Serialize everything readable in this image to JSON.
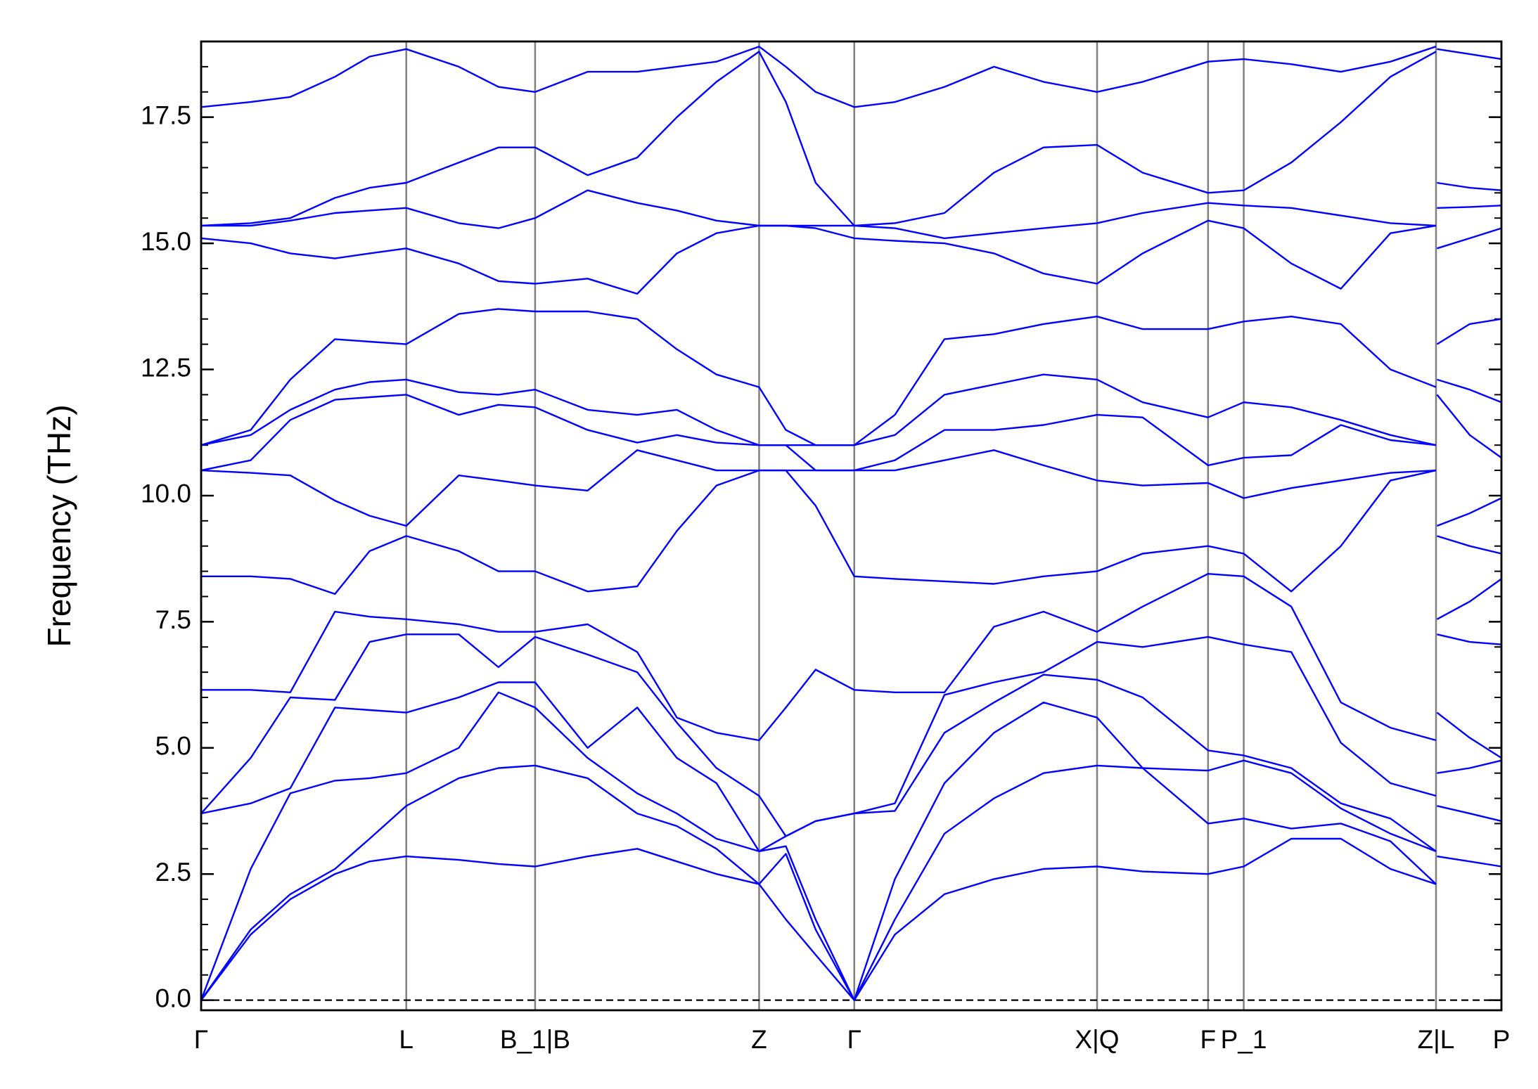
{
  "chart_data": {
    "type": "line",
    "y_label": "Frequency (THz)",
    "color": "#0000ff",
    "vline_color": "#808080",
    "zero_line": 0,
    "xlim": [
      0,
      13.12
    ],
    "ylim": [
      -0.2,
      19.0
    ],
    "yticks": [
      {
        "value": 0,
        "label": "0.0"
      },
      2.5,
      {
        "value": 5,
        "label": "5.0"
      },
      7.5,
      {
        "value": 10,
        "label": "10.0"
      },
      12.5,
      {
        "value": 15,
        "label": "15.0"
      },
      17.5
    ],
    "yminor": 0.5,
    "xticks": [
      {
        "value": 0,
        "label": "Γ"
      },
      {
        "value": 2.07,
        "label": "L"
      },
      {
        "value": 3.37,
        "label": "B_1|B"
      },
      {
        "value": 5.63,
        "label": "Z"
      },
      {
        "value": 6.59,
        "label": "Γ"
      },
      {
        "value": 9.04,
        "label": "X|Q"
      },
      {
        "value": 10.16,
        "label": "F"
      },
      {
        "value": 10.52,
        "label": "P_1"
      },
      {
        "value": 12.46,
        "label": "Z|L"
      },
      {
        "value": 13.12,
        "label": "P"
      }
    ],
    "x": [
      0,
      0.5,
      0.9,
      1.35,
      1.7,
      2.07,
      2.6,
      3.0,
      3.37,
      3.9,
      4.4,
      4.8,
      5.2,
      5.63,
      5.9,
      6.2,
      6.59,
      7.0,
      7.5,
      8.0,
      8.5,
      9.04,
      9.5,
      10.16,
      10.52,
      11.0,
      11.5,
      12.0,
      12.46,
      12.465,
      12.47,
      12.8,
      13.12
    ],
    "series": [
      {
        "values": [
          0,
          1.3,
          2.0,
          2.5,
          2.75,
          2.85,
          2.78,
          2.7,
          2.65,
          2.85,
          3.0,
          2.75,
          2.5,
          2.3,
          1.6,
          0.9,
          0,
          1.3,
          2.1,
          2.4,
          2.6,
          2.65,
          2.55,
          2.5,
          2.65,
          3.2,
          3.2,
          2.6,
          2.3,
          null,
          2.85,
          2.75,
          2.65
        ]
      },
      {
        "values": [
          0,
          1.4,
          2.1,
          2.6,
          3.2,
          3.85,
          4.4,
          4.6,
          4.65,
          4.4,
          3.7,
          3.45,
          3.0,
          2.3,
          2.9,
          1.4,
          0,
          1.6,
          3.3,
          4.0,
          4.5,
          4.65,
          4.6,
          3.5,
          3.6,
          3.4,
          3.5,
          3.15,
          2.3,
          null,
          3.85,
          3.7,
          3.55
        ]
      },
      {
        "values": [
          0,
          2.6,
          4.1,
          4.35,
          4.4,
          4.5,
          5.0,
          6.1,
          5.8,
          4.8,
          4.1,
          3.7,
          3.2,
          2.95,
          3.05,
          1.6,
          0,
          2.4,
          4.3,
          5.3,
          5.9,
          5.6,
          4.6,
          4.55,
          4.75,
          4.5,
          3.8,
          3.3,
          2.95,
          null,
          4.5,
          4.6,
          4.75
        ]
      },
      {
        "values": [
          3.7,
          3.9,
          4.2,
          5.8,
          5.75,
          5.7,
          6.0,
          6.3,
          6.3,
          5.0,
          5.8,
          4.8,
          4.3,
          2.95,
          3.25,
          3.55,
          3.7,
          3.75,
          5.3,
          5.9,
          6.45,
          6.35,
          6.0,
          4.95,
          4.85,
          4.6,
          3.9,
          3.6,
          2.95,
          null,
          5.7,
          5.2,
          4.8
        ]
      },
      {
        "values": [
          3.7,
          4.8,
          6.0,
          5.95,
          7.1,
          7.25,
          7.25,
          6.6,
          7.2,
          6.85,
          6.5,
          5.5,
          4.6,
          4.05,
          3.25,
          3.55,
          3.7,
          3.9,
          6.05,
          6.3,
          6.5,
          7.1,
          7.0,
          7.2,
          7.05,
          6.9,
          5.1,
          4.3,
          4.05,
          null,
          7.25,
          7.1,
          7.05
        ]
      },
      {
        "values": [
          6.15,
          6.15,
          6.1,
          7.7,
          7.6,
          7.55,
          7.45,
          7.3,
          7.3,
          7.45,
          6.9,
          5.6,
          5.3,
          5.15,
          5.8,
          6.55,
          6.15,
          6.1,
          6.1,
          7.4,
          7.7,
          7.3,
          7.8,
          8.45,
          8.4,
          7.8,
          5.9,
          5.4,
          5.15,
          null,
          7.55,
          7.9,
          8.35
        ]
      },
      {
        "values": [
          8.4,
          8.4,
          8.35,
          8.05,
          8.9,
          9.2,
          8.9,
          8.5,
          8.5,
          8.1,
          8.2,
          9.3,
          10.2,
          10.5,
          10.5,
          9.8,
          8.4,
          8.35,
          8.3,
          8.25,
          8.4,
          8.5,
          8.85,
          9.0,
          8.85,
          8.1,
          9.0,
          10.3,
          10.5,
          null,
          9.2,
          9.0,
          8.85
        ]
      },
      {
        "values": [
          10.5,
          10.45,
          10.4,
          9.9,
          9.6,
          9.4,
          10.4,
          10.3,
          10.2,
          10.1,
          10.9,
          10.7,
          10.5,
          10.5,
          10.5,
          10.5,
          10.5,
          10.5,
          10.7,
          10.9,
          10.6,
          10.3,
          10.2,
          10.25,
          9.95,
          10.15,
          10.3,
          10.45,
          10.5,
          null,
          9.4,
          9.65,
          9.95
        ]
      },
      {
        "values": [
          10.5,
          10.7,
          11.5,
          11.9,
          11.95,
          12.0,
          11.6,
          11.8,
          11.75,
          11.3,
          11.05,
          11.2,
          11.05,
          11.0,
          11.0,
          10.5,
          10.5,
          10.7,
          11.3,
          11.3,
          11.4,
          11.6,
          11.55,
          10.6,
          10.75,
          10.8,
          11.4,
          11.1,
          11.0,
          null,
          12.0,
          11.2,
          10.75
        ]
      },
      {
        "values": [
          11.0,
          11.2,
          11.7,
          12.1,
          12.25,
          12.3,
          12.05,
          12.0,
          12.1,
          11.7,
          11.6,
          11.7,
          11.3,
          11.0,
          11.0,
          11.0,
          11.0,
          11.2,
          12.0,
          12.2,
          12.4,
          12.3,
          11.85,
          11.55,
          11.85,
          11.75,
          11.5,
          11.2,
          11.0,
          null,
          12.3,
          12.1,
          11.85
        ]
      },
      {
        "values": [
          11.0,
          11.3,
          12.3,
          13.1,
          13.05,
          13.0,
          13.6,
          13.7,
          13.65,
          13.65,
          13.5,
          12.9,
          12.4,
          12.15,
          11.3,
          11.0,
          11.0,
          11.6,
          13.1,
          13.2,
          13.4,
          13.55,
          13.3,
          13.3,
          13.45,
          13.55,
          13.4,
          12.5,
          12.15,
          null,
          13.0,
          13.4,
          13.5
        ]
      },
      {
        "values": [
          15.1,
          15.0,
          14.8,
          14.7,
          14.8,
          14.9,
          14.6,
          14.25,
          14.2,
          14.3,
          14.0,
          14.8,
          15.2,
          15.35,
          15.35,
          15.3,
          15.1,
          15.05,
          15.0,
          14.8,
          14.4,
          14.2,
          14.8,
          15.45,
          15.3,
          14.6,
          14.1,
          15.2,
          15.35,
          null,
          14.9,
          15.1,
          15.3
        ]
      },
      {
        "values": [
          15.35,
          15.35,
          15.45,
          15.6,
          15.65,
          15.7,
          15.4,
          15.3,
          15.5,
          16.05,
          15.8,
          15.65,
          15.45,
          15.35,
          15.35,
          15.35,
          15.35,
          15.3,
          15.1,
          15.2,
          15.3,
          15.4,
          15.6,
          15.8,
          15.75,
          15.7,
          15.55,
          15.4,
          15.35,
          null,
          15.7,
          15.72,
          15.75
        ]
      },
      {
        "values": [
          15.35,
          15.4,
          15.5,
          15.9,
          16.1,
          16.2,
          16.6,
          16.9,
          16.9,
          16.35,
          16.7,
          17.5,
          18.2,
          18.8,
          17.8,
          16.2,
          15.35,
          15.4,
          15.6,
          16.4,
          16.9,
          16.95,
          16.4,
          16.0,
          16.05,
          16.6,
          17.4,
          18.3,
          18.8,
          null,
          16.2,
          16.1,
          16.05
        ]
      },
      {
        "values": [
          17.7,
          17.8,
          17.9,
          18.3,
          18.7,
          18.85,
          18.5,
          18.1,
          18.0,
          18.4,
          18.4,
          18.5,
          18.6,
          18.9,
          18.5,
          18.0,
          17.7,
          17.8,
          18.1,
          18.5,
          18.2,
          18.0,
          18.2,
          18.6,
          18.65,
          18.55,
          18.4,
          18.6,
          18.9,
          null,
          18.85,
          18.75,
          18.65
        ]
      }
    ]
  }
}
